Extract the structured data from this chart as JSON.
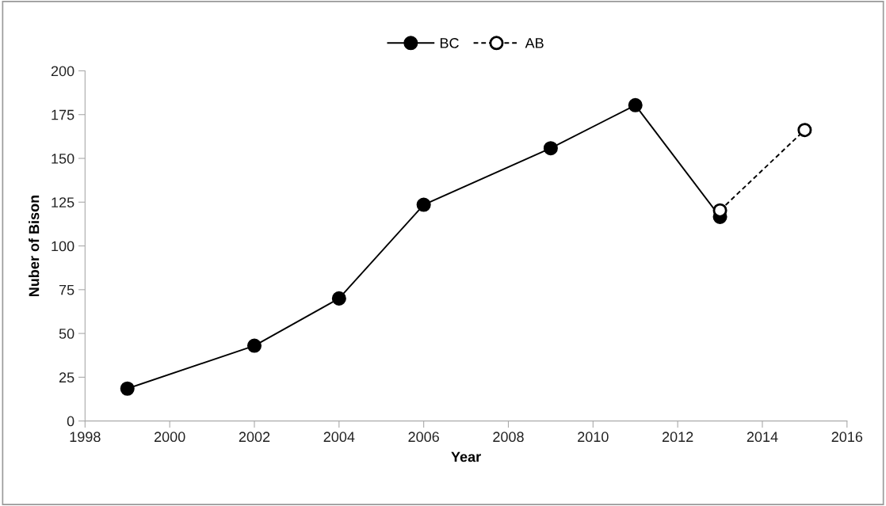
{
  "chart_data": {
    "type": "line",
    "xlabel": "Year",
    "ylabel": "Nuber of Bison",
    "xlim": [
      1998,
      2016
    ],
    "xticks": [
      1998,
      2000,
      2002,
      2004,
      2006,
      2008,
      2010,
      2012,
      2014,
      2016
    ],
    "ylim": [
      0,
      200
    ],
    "yticks": [
      0,
      25,
      50,
      75,
      100,
      125,
      150,
      175,
      200
    ],
    "grid": false,
    "legend": "top",
    "marker": "circle",
    "series": [
      {
        "name": "BC",
        "color": "#000000",
        "line_style": "solid",
        "x": [
          1999,
          2002,
          2004,
          2006,
          2009,
          2011,
          2013
        ],
        "values": [
          18.5,
          43,
          70,
          123.5,
          155.8,
          180.4,
          116.6
        ]
      },
      {
        "name": "AB",
        "color": "#000000",
        "line_style": "dashed",
        "x": [
          2013,
          2015
        ],
        "values": [
          120.3,
          166.2
        ]
      }
    ]
  }
}
